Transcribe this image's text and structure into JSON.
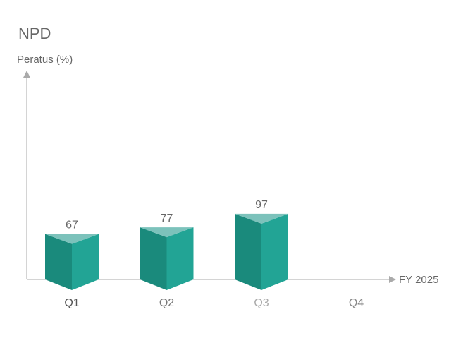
{
  "chart_data": {
    "type": "bar",
    "style": "3d-prism",
    "title": "NPD",
    "ylabel": "Peratus (%)",
    "xlabel": "FY 2025",
    "categories": [
      "Q1",
      "Q2",
      "Q3",
      "Q4"
    ],
    "values": [
      67,
      77,
      97,
      null
    ],
    "value_labels": [
      "67",
      "77",
      "97",
      ""
    ],
    "tick_label_colors": [
      "#555555",
      "#777777",
      "#aaaaaa",
      "#888888"
    ],
    "ylim": [
      0,
      300
    ],
    "grid": false,
    "legend": "none",
    "colors": {
      "front_left": "#1a8a7c",
      "front_right": "#22a495",
      "top": "#7cc2bb",
      "axis": "#aaaaaa",
      "text": "#666666"
    }
  }
}
